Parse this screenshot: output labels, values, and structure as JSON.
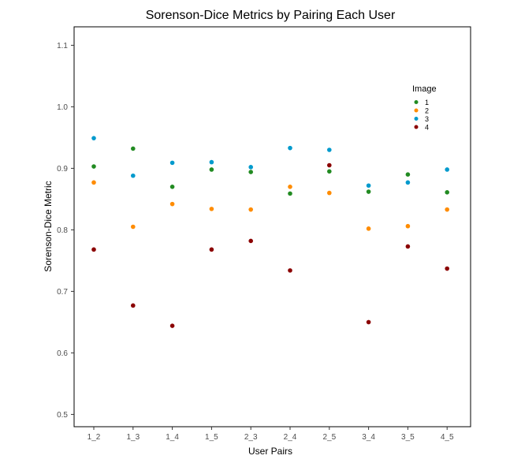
{
  "chart_data": {
    "type": "scatter",
    "title": "Sorenson-Dice Metrics by Pairing Each User",
    "xlabel": "User Pairs",
    "ylabel": "Sorenson-Dice Metric",
    "categories": [
      "1_2",
      "1_3",
      "1_4",
      "1_5",
      "2_3",
      "2_4",
      "2_5",
      "3_4",
      "3_5",
      "4_5"
    ],
    "ylim": [
      0.48,
      1.13
    ],
    "yticks": [
      "0.5",
      "0.6",
      "0.7",
      "0.8",
      "0.9",
      "1.0",
      "1.1"
    ],
    "grid": false,
    "legend": {
      "title": "Image",
      "position": "top-right"
    },
    "series": [
      {
        "name": "1",
        "color": "#228B22",
        "values": [
          0.903,
          0.932,
          0.87,
          0.898,
          0.894,
          0.859,
          0.895,
          0.862,
          0.89,
          0.861
        ]
      },
      {
        "name": "2",
        "color": "#FF8C00",
        "values": [
          0.877,
          0.805,
          0.842,
          0.834,
          0.833,
          0.87,
          0.86,
          0.802,
          0.806,
          0.833
        ]
      },
      {
        "name": "3",
        "color": "#009ACD",
        "values": [
          0.949,
          0.888,
          0.909,
          0.91,
          0.902,
          0.933,
          0.93,
          0.872,
          0.877,
          0.898
        ]
      },
      {
        "name": "4",
        "color": "#8B0000",
        "values": [
          0.768,
          0.677,
          0.644,
          0.768,
          0.782,
          0.734,
          0.905,
          0.65,
          0.773,
          0.737
        ]
      }
    ]
  }
}
